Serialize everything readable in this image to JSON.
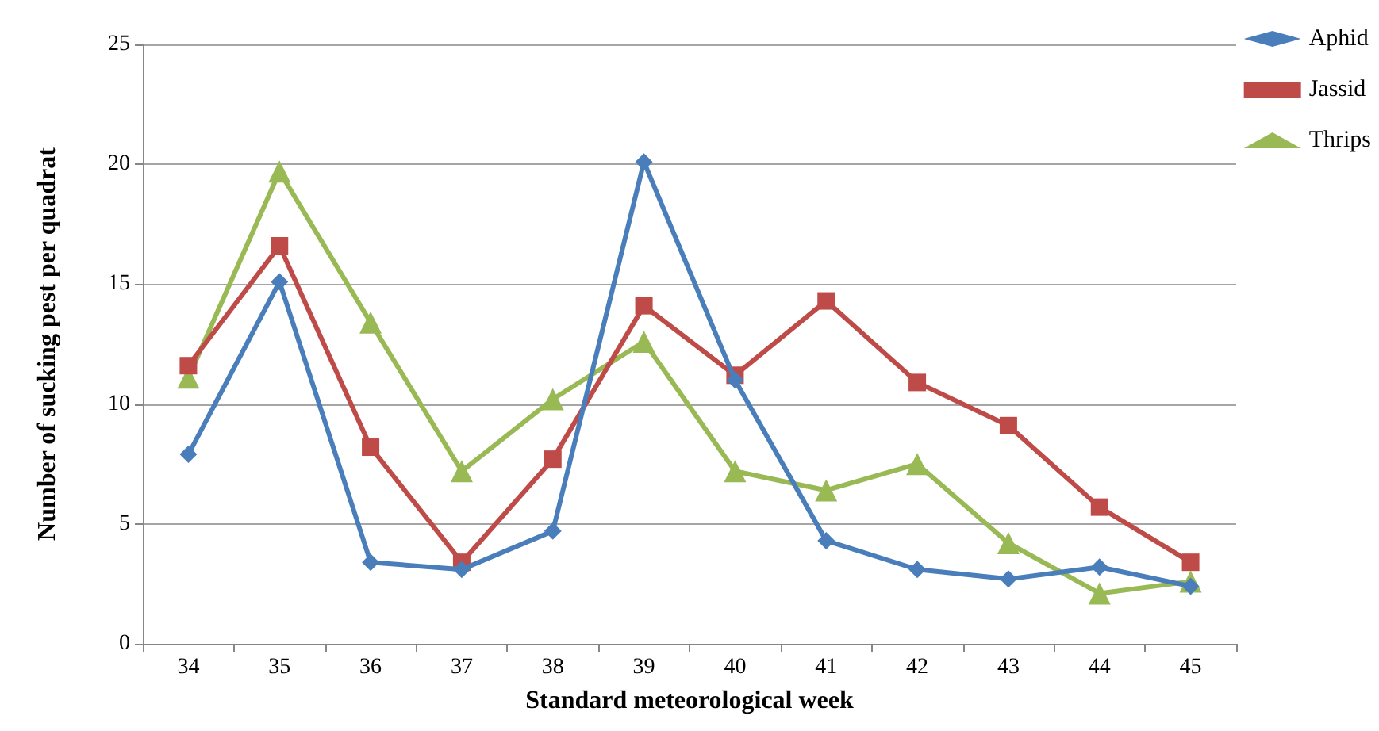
{
  "chart_data": {
    "type": "line",
    "xlabel": "Standard meteorological week",
    "ylabel": "Number of sucking pest per quadrat",
    "categories": [
      "34",
      "35",
      "36",
      "37",
      "38",
      "39",
      "40",
      "41",
      "42",
      "43",
      "44",
      "45"
    ],
    "series": [
      {
        "name": "Aphid",
        "color": "#4a7ebb",
        "marker": "diamond",
        "values": [
          7.9,
          15.1,
          3.4,
          3.1,
          4.7,
          20.1,
          11.0,
          4.3,
          3.1,
          2.7,
          3.2,
          2.4
        ]
      },
      {
        "name": "Jassid",
        "color": "#be4b48",
        "marker": "square",
        "values": [
          11.6,
          16.6,
          8.2,
          3.4,
          7.7,
          14.1,
          11.2,
          14.3,
          10.9,
          9.1,
          5.7,
          3.4
        ]
      },
      {
        "name": "Thrips",
        "color": "#98b954",
        "marker": "triangle",
        "values": [
          11.1,
          19.7,
          13.4,
          7.2,
          10.2,
          12.6,
          7.2,
          6.4,
          7.5,
          4.2,
          2.1,
          2.6
        ]
      }
    ],
    "ylim": [
      0,
      25
    ],
    "yticks": [
      0,
      5,
      10,
      15,
      20,
      25
    ],
    "grid": "y",
    "legend": "top right",
    "line_style": "solid"
  }
}
